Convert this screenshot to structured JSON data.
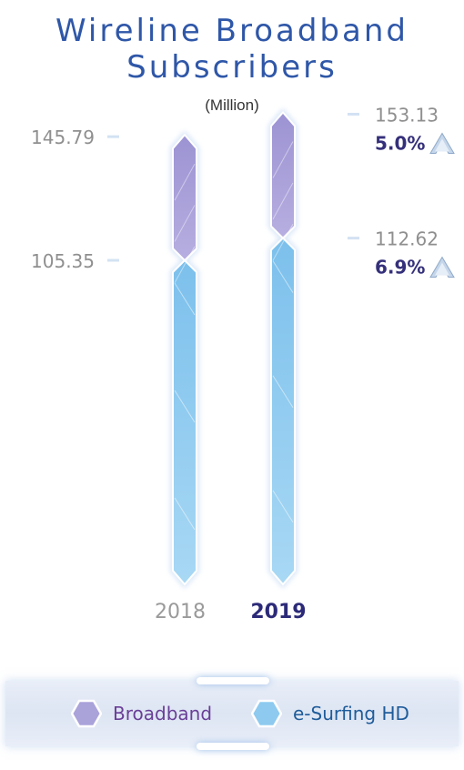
{
  "header": {
    "title_line1": "Wireline Broadband",
    "title_line2": "Subscribers",
    "unit": "(Million)"
  },
  "chart_data": {
    "type": "bar",
    "categories": [
      "2018",
      "2019"
    ],
    "series": [
      {
        "name": "Broadband",
        "values": [
          145.79,
          153.13
        ],
        "growth": [
          "",
          "5.0%"
        ]
      },
      {
        "name": "e-Surfing HD",
        "values": [
          105.35,
          112.62
        ],
        "growth": [
          "",
          "6.9%"
        ]
      }
    ],
    "colors": {
      "Broadband": "#a59dd6",
      "e-Surfing HD": "#8ac8ee"
    },
    "highlight_category": "2019",
    "growth_icon": "up-arrow-icon"
  },
  "legend": {
    "items": [
      {
        "label": "Broadband",
        "color": "#6a3f97"
      },
      {
        "label": "e-Surfing HD",
        "color": "#1f5c9a"
      }
    ]
  }
}
